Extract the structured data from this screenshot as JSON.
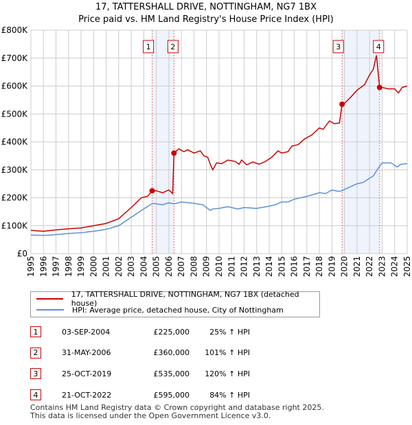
{
  "title": "17, TATTERSHALL DRIVE, NOTTINGHAM, NG7 1BX",
  "subtitle": "Price paid vs. HM Land Registry's House Price Index (HPI)",
  "chart_data": {
    "type": "line",
    "ylabel": "",
    "xlabel": "",
    "ylim": [
      0,
      800000
    ],
    "xlim": [
      1995,
      2025
    ],
    "yticks": [
      {
        "v": 0,
        "label": "£0"
      },
      {
        "v": 100000,
        "label": "£100K"
      },
      {
        "v": 200000,
        "label": "£200K"
      },
      {
        "v": 300000,
        "label": "£300K"
      },
      {
        "v": 400000,
        "label": "£400K"
      },
      {
        "v": 500000,
        "label": "£500K"
      },
      {
        "v": 600000,
        "label": "£600K"
      },
      {
        "v": 700000,
        "label": "£700K"
      },
      {
        "v": 800000,
        "label": "£800K"
      }
    ],
    "xticks": [
      "1995",
      "1996",
      "1997",
      "1998",
      "1999",
      "2000",
      "2001",
      "2002",
      "2003",
      "2004",
      "2005",
      "2006",
      "2007",
      "2008",
      "2009",
      "2010",
      "2011",
      "2012",
      "2013",
      "2014",
      "2015",
      "2016",
      "2017",
      "2018",
      "2019",
      "2020",
      "2021",
      "2022",
      "2023",
      "2024",
      "2025"
    ],
    "series": [
      {
        "name": "17, TATTERSHALL DRIVE, NOTTINGHAM, NG7 1BX (detached house)",
        "color": "#cc0000",
        "points": [
          [
            1995,
            83000
          ],
          [
            1996,
            80000
          ],
          [
            1997,
            85000
          ],
          [
            1998,
            89000
          ],
          [
            1999,
            92000
          ],
          [
            2000,
            100000
          ],
          [
            2001,
            108000
          ],
          [
            2002,
            125000
          ],
          [
            2003,
            165000
          ],
          [
            2003.8,
            200000
          ],
          [
            2004.3,
            205000
          ],
          [
            2004.67,
            225000
          ],
          [
            2005,
            225000
          ],
          [
            2005.5,
            218000
          ],
          [
            2006,
            228000
          ],
          [
            2006.3,
            215000
          ],
          [
            2006.41,
            360000
          ],
          [
            2006.8,
            375000
          ],
          [
            2007.2,
            365000
          ],
          [
            2007.5,
            372000
          ],
          [
            2008,
            360000
          ],
          [
            2008.5,
            368000
          ],
          [
            2008.8,
            350000
          ],
          [
            2009.1,
            345000
          ],
          [
            2009.3,
            320000
          ],
          [
            2009.5,
            300000
          ],
          [
            2009.8,
            325000
          ],
          [
            2010.2,
            322000
          ],
          [
            2010.7,
            335000
          ],
          [
            2011.3,
            330000
          ],
          [
            2011.6,
            320000
          ],
          [
            2011.8,
            335000
          ],
          [
            2012.2,
            318000
          ],
          [
            2012.7,
            328000
          ],
          [
            2013.2,
            320000
          ],
          [
            2013.7,
            330000
          ],
          [
            2014.2,
            345000
          ],
          [
            2014.7,
            368000
          ],
          [
            2015,
            360000
          ],
          [
            2015.5,
            365000
          ],
          [
            2015.8,
            385000
          ],
          [
            2016.3,
            390000
          ],
          [
            2016.8,
            410000
          ],
          [
            2017.4,
            425000
          ],
          [
            2018,
            450000
          ],
          [
            2018.3,
            445000
          ],
          [
            2018.8,
            475000
          ],
          [
            2019.2,
            465000
          ],
          [
            2019.6,
            468000
          ],
          [
            2019.81,
            535000
          ],
          [
            2020,
            538000
          ],
          [
            2020.5,
            560000
          ],
          [
            2021,
            585000
          ],
          [
            2021.6,
            605000
          ],
          [
            2022,
            640000
          ],
          [
            2022.3,
            660000
          ],
          [
            2022.55,
            710000
          ],
          [
            2022.8,
            595000
          ],
          [
            2023,
            595000
          ],
          [
            2023.5,
            590000
          ],
          [
            2024,
            590000
          ],
          [
            2024.3,
            575000
          ],
          [
            2024.6,
            595000
          ],
          [
            2025,
            600000
          ]
        ]
      },
      {
        "name": "HPI: Average price, detached house, City of Nottingham",
        "color": "#5b8fd6",
        "points": [
          [
            1995,
            67000
          ],
          [
            1996,
            65000
          ],
          [
            1997,
            68000
          ],
          [
            1998,
            72000
          ],
          [
            1999,
            75000
          ],
          [
            2000,
            80000
          ],
          [
            2001,
            87000
          ],
          [
            2002,
            100000
          ],
          [
            2003,
            130000
          ],
          [
            2004,
            160000
          ],
          [
            2004.7,
            180000
          ],
          [
            2005.5,
            175000
          ],
          [
            2006,
            182000
          ],
          [
            2006.4,
            178000
          ],
          [
            2007,
            185000
          ],
          [
            2008,
            180000
          ],
          [
            2008.7,
            175000
          ],
          [
            2009.3,
            155000
          ],
          [
            2009.5,
            160000
          ],
          [
            2010,
            162000
          ],
          [
            2010.7,
            168000
          ],
          [
            2011.5,
            160000
          ],
          [
            2012,
            165000
          ],
          [
            2013,
            162000
          ],
          [
            2014,
            170000
          ],
          [
            2014.5,
            175000
          ],
          [
            2015,
            185000
          ],
          [
            2015.5,
            185000
          ],
          [
            2016,
            195000
          ],
          [
            2017,
            205000
          ],
          [
            2018,
            218000
          ],
          [
            2018.5,
            215000
          ],
          [
            2019,
            228000
          ],
          [
            2019.5,
            223000
          ],
          [
            2019.8,
            225000
          ],
          [
            2020,
            230000
          ],
          [
            2021,
            250000
          ],
          [
            2021.5,
            255000
          ],
          [
            2022,
            270000
          ],
          [
            2022.3,
            278000
          ],
          [
            2022.6,
            300000
          ],
          [
            2023,
            325000
          ],
          [
            2023.7,
            325000
          ],
          [
            2024.2,
            310000
          ],
          [
            2024.5,
            320000
          ],
          [
            2025,
            322000
          ]
        ]
      }
    ],
    "sales": [
      {
        "n": "1",
        "x": 2004.67,
        "y": 225000
      },
      {
        "n": "2",
        "x": 2006.41,
        "y": 360000
      },
      {
        "n": "3",
        "x": 2019.81,
        "y": 535000
      },
      {
        "n": "4",
        "x": 2022.8,
        "y": 595000
      }
    ],
    "shaded": [
      [
        2004.67,
        2006.41
      ],
      [
        2019.81,
        2022.8
      ]
    ],
    "grid": true
  },
  "legend": {
    "red": "17, TATTERSHALL DRIVE, NOTTINGHAM, NG7 1BX (detached house)",
    "blue": "HPI: Average price, detached house, City of Nottingham"
  },
  "transactions": [
    {
      "n": "1",
      "date": "03-SEP-2004",
      "price": "£225,000",
      "hpi": "25% ↑ HPI"
    },
    {
      "n": "2",
      "date": "31-MAY-2006",
      "price": "£360,000",
      "hpi": "101% ↑ HPI"
    },
    {
      "n": "3",
      "date": "25-OCT-2019",
      "price": "£535,000",
      "hpi": "120% ↑ HPI"
    },
    {
      "n": "4",
      "date": "21-OCT-2022",
      "price": "£595,000",
      "hpi": "84% ↑ HPI"
    }
  ],
  "footer": [
    "Contains HM Land Registry data © Crown copyright and database right 2025.",
    "This data is licensed under the Open Government Licence v3.0."
  ]
}
